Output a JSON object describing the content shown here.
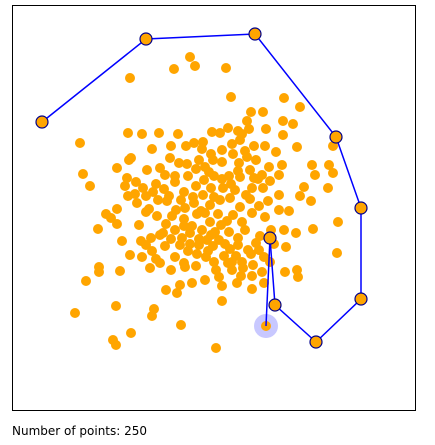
{
  "status": {
    "label": "Number of points:",
    "count": "250"
  },
  "colors": {
    "point_fill": "#FFA500",
    "hull_vertex_fill": "#FFA500",
    "hull_vertex_stroke": "#00008B",
    "hull_edge": "#0000FF",
    "hover_highlight": "#C8C8FF"
  }
}
